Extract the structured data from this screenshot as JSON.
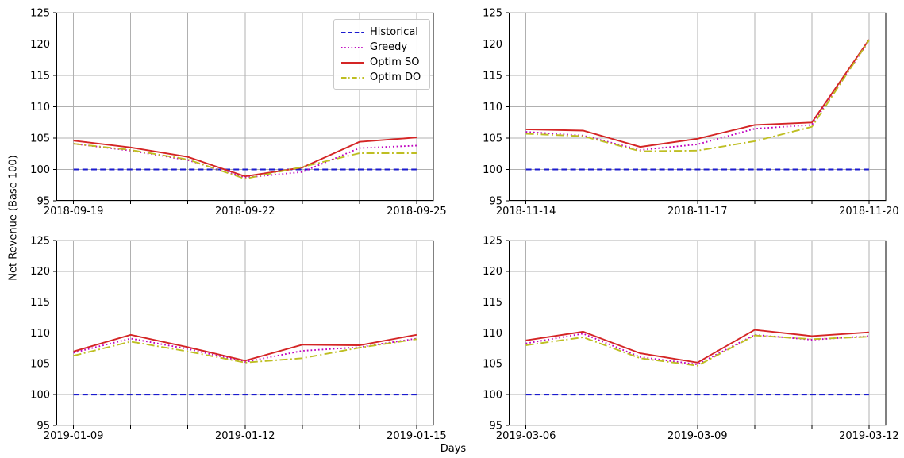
{
  "figure": {
    "ylabel": "Net Revenue (Base 100)",
    "xlabel": "Days"
  },
  "legend": {
    "entries": [
      {
        "label": "Historical",
        "color": "#1b1bcf",
        "style": "dashed"
      },
      {
        "label": "Greedy",
        "color": "#bf00bf",
        "style": "dotted"
      },
      {
        "label": "Optim SO",
        "color": "#d42525",
        "style": "solid"
      },
      {
        "label": "Optim DO",
        "color": "#bebe22",
        "style": "dashdot"
      }
    ]
  },
  "axes": {
    "ylim": [
      95,
      125
    ],
    "yticks": [
      95,
      100,
      105,
      110,
      115,
      120,
      125
    ],
    "points_per_series": 7,
    "x_labeled_indices": [
      0,
      3,
      6
    ],
    "grid_color": "#b0b0b0",
    "grid": true
  },
  "chart_data": [
    {
      "id": "top-left",
      "type": "line",
      "x_tick_labels": [
        "2018-09-19",
        "2018-09-22",
        "2018-09-25"
      ],
      "series": [
        {
          "name": "Historical",
          "values": [
            100,
            100,
            100,
            100,
            100,
            100,
            100
          ]
        },
        {
          "name": "Greedy",
          "values": [
            104.1,
            103.0,
            101.5,
            98.7,
            99.6,
            103.4,
            103.8
          ]
        },
        {
          "name": "Optim SO",
          "values": [
            104.6,
            103.5,
            102.0,
            98.9,
            100.3,
            104.4,
            105.1
          ]
        },
        {
          "name": "Optim DO",
          "values": [
            104.1,
            103.1,
            101.6,
            98.5,
            100.4,
            102.6,
            102.6
          ]
        }
      ]
    },
    {
      "id": "top-right",
      "type": "line",
      "x_tick_labels": [
        "2018-11-14",
        "2018-11-17",
        "2018-11-20"
      ],
      "series": [
        {
          "name": "Historical",
          "values": [
            100,
            100,
            100,
            100,
            100,
            100,
            100
          ]
        },
        {
          "name": "Greedy",
          "values": [
            106.0,
            105.4,
            103.1,
            104.0,
            106.5,
            107.1,
            120.5
          ]
        },
        {
          "name": "Optim SO",
          "values": [
            106.4,
            106.2,
            103.6,
            104.9,
            107.1,
            107.5,
            120.7
          ]
        },
        {
          "name": "Optim DO",
          "values": [
            105.7,
            105.3,
            102.9,
            103.0,
            104.5,
            106.8,
            120.6
          ]
        }
      ]
    },
    {
      "id": "bottom-left",
      "type": "line",
      "x_tick_labels": [
        "2019-01-09",
        "2019-01-12",
        "2019-01-15"
      ],
      "series": [
        {
          "name": "Historical",
          "values": [
            100,
            100,
            100,
            100,
            100,
            100,
            100
          ]
        },
        {
          "name": "Greedy",
          "values": [
            106.8,
            109.1,
            107.4,
            105.3,
            107.1,
            107.7,
            109.1
          ]
        },
        {
          "name": "Optim SO",
          "values": [
            107.0,
            109.7,
            107.7,
            105.5,
            108.1,
            108.0,
            109.7
          ]
        },
        {
          "name": "Optim DO",
          "values": [
            106.3,
            108.6,
            107.0,
            105.2,
            105.9,
            107.6,
            109.0
          ]
        }
      ]
    },
    {
      "id": "bottom-right",
      "type": "line",
      "x_tick_labels": [
        "2019-03-06",
        "2019-03-09",
        "2019-03-12"
      ],
      "series": [
        {
          "name": "Historical",
          "values": [
            100,
            100,
            100,
            100,
            100,
            100,
            100
          ]
        },
        {
          "name": "Greedy",
          "values": [
            108.3,
            109.9,
            106.1,
            104.9,
            109.7,
            108.9,
            109.5
          ]
        },
        {
          "name": "Optim SO",
          "values": [
            108.8,
            110.2,
            106.7,
            105.2,
            110.5,
            109.5,
            110.1
          ]
        },
        {
          "name": "Optim DO",
          "values": [
            108.0,
            109.3,
            105.9,
            104.7,
            109.6,
            109.0,
            109.4
          ]
        }
      ]
    }
  ]
}
